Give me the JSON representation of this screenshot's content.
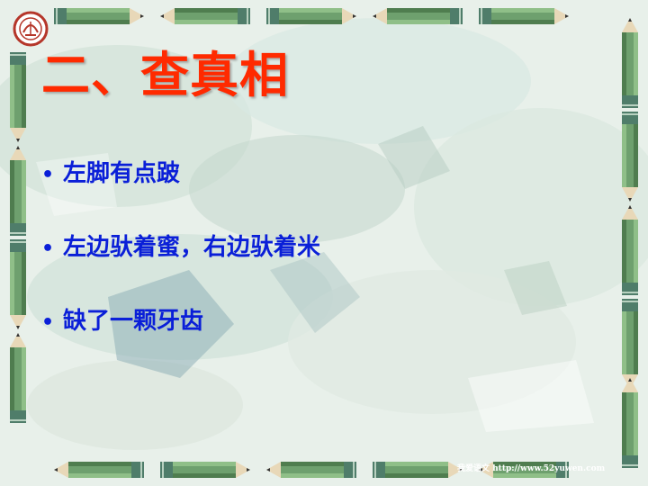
{
  "slide": {
    "title": "二、查真相",
    "bullets": [
      {
        "marker": "•",
        "text": "左脚有点跛"
      },
      {
        "marker": "•",
        "text": "左边驮着蜜，右边驮着米"
      },
      {
        "marker": "•",
        "text": "缺了一颗牙齿"
      }
    ],
    "footer": "我爱语文  http://www.52yuwen.com"
  },
  "colors": {
    "title": "#ff2a00",
    "bullet_text": "#0a1fd8",
    "pencil_body": "#6ea06e",
    "background": "#e6efe8"
  },
  "icons": {
    "logo": "school-emblem-icon",
    "border": "pencil-icon"
  }
}
